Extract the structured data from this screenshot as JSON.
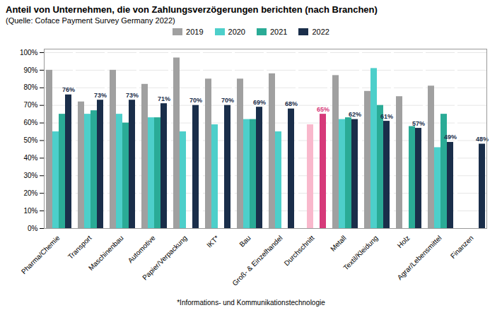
{
  "chart_data": {
    "type": "bar",
    "title": "Anteil von Unternehmen, die von Zahlungsverzögerungen berichten (nach Branchen)",
    "subtitle": "(Quelle: Coface Payment Survey Germany 2022)",
    "footnote": "*Informations- und Kommunikationstechnologie",
    "categories": [
      "Pharma/Chemie",
      "Transport",
      "Maschinenbau",
      "Automotive",
      "Papier/Verpackung",
      "IKT*",
      "Bau",
      "Groß- & Einzelhandel",
      "Durchschnitt",
      "Metall",
      "Textil/Kleidung",
      "Holz",
      "Agrar/Lebensmittel",
      "Finanzen"
    ],
    "series": [
      {
        "name": "2019",
        "color": "#a0a0a0",
        "values": [
          90,
          72,
          90,
          82,
          97,
          85,
          85,
          88,
          null,
          87,
          78,
          75,
          81,
          null
        ]
      },
      {
        "name": "2020",
        "color": "#4dcfca",
        "colors": [
          "#4dcfca",
          "#4dcfca",
          "#4dcfca",
          "#4dcfca",
          "#4dcfca",
          "#4dcfca",
          "#4dcfca",
          "#4dcfca",
          "#f9b8cc",
          "#4dcfca",
          "#4dcfca",
          "#4dcfca",
          "#4dcfca",
          "#4dcfca"
        ],
        "values": [
          55,
          65,
          65,
          63,
          55,
          59,
          62,
          55,
          59,
          62,
          91,
          null,
          46,
          null
        ]
      },
      {
        "name": "2021",
        "color": "#2aab96",
        "values": [
          65,
          67,
          60,
          63,
          null,
          null,
          62,
          null,
          null,
          63,
          70,
          58,
          65,
          null
        ]
      },
      {
        "name": "2022",
        "color": "#1a2e4a",
        "colors": [
          "#1a2e4a",
          "#1a2e4a",
          "#1a2e4a",
          "#1a2e4a",
          "#1a2e4a",
          "#1a2e4a",
          "#1a2e4a",
          "#1a2e4a",
          "#d63a7a",
          "#1a2e4a",
          "#1a2e4a",
          "#1a2e4a",
          "#1a2e4a",
          "#1a2e4a"
        ],
        "values": [
          76,
          73,
          73,
          71,
          70,
          70,
          69,
          68,
          65,
          62,
          61,
          57,
          49,
          48
        ],
        "value_labels": [
          "76%",
          "73%",
          "73%",
          "71%",
          "70%",
          "70%",
          "69%",
          "68%",
          "65%",
          "62%",
          "61%",
          "57%",
          "49%",
          "48%"
        ]
      }
    ],
    "ylim": [
      0,
      102
    ],
    "yticks": [
      {
        "value": 0,
        "label": "0%"
      },
      {
        "value": 10,
        "label": "10%"
      },
      {
        "value": 20,
        "label": "20%"
      },
      {
        "value": 30,
        "label": "30%"
      },
      {
        "value": 40,
        "label": "40%"
      },
      {
        "value": 50,
        "label": "50%"
      },
      {
        "value": 60,
        "label": "60%"
      },
      {
        "value": 70,
        "label": "70%"
      },
      {
        "value": 80,
        "label": "80%"
      },
      {
        "value": 90,
        "label": "90%"
      },
      {
        "value": 100,
        "label": "100%"
      }
    ],
    "grid": true,
    "legend": "top"
  }
}
